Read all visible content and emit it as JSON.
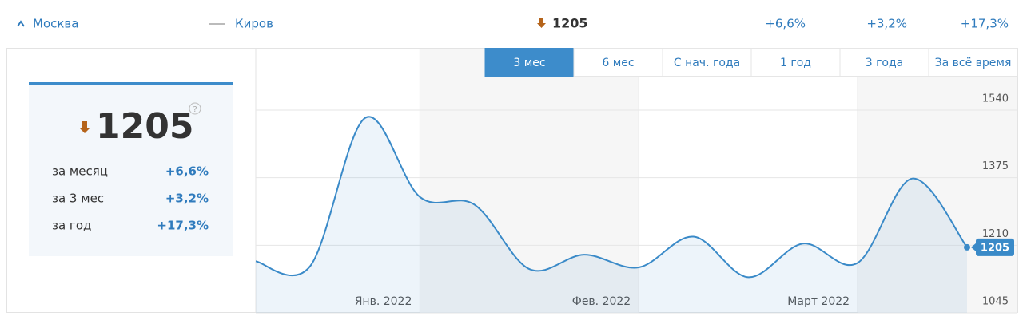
{
  "header": {
    "city": "Москва",
    "compare": "Киров",
    "value": 1205,
    "changes": [
      "+6,6%",
      "+3,2%",
      "+17,3%"
    ]
  },
  "summary": {
    "value": 1205,
    "help": "?",
    "rows": [
      {
        "label": "за месяц",
        "change": "+6,6%"
      },
      {
        "label": "за 3 мес",
        "change": "+3,2%"
      },
      {
        "label": "за год",
        "change": "+17,3%"
      }
    ]
  },
  "tabs": {
    "items": [
      "3 мес",
      "6 мес",
      "С нач. года",
      "1 год",
      "3 года",
      "За всё время"
    ],
    "active": 0
  },
  "chart_data": {
    "type": "line",
    "color": "#3a8ac8",
    "x": [
      0,
      1,
      2,
      3,
      4,
      5,
      6,
      7,
      8,
      9,
      10,
      11,
      12,
      13
    ],
    "values": [
      1171,
      1160,
      1521,
      1328,
      1309,
      1152,
      1187,
      1156,
      1231,
      1132,
      1214,
      1167,
      1373,
      1205
    ],
    "xlim": [
      0,
      13
    ],
    "xticks": [
      {
        "value": 3,
        "label": "Янв. 2022"
      },
      {
        "value": 7,
        "label": "Фев. 2022"
      },
      {
        "value": 11,
        "label": "Март 2022"
      }
    ],
    "ylim": [
      1045,
      1540
    ],
    "yticks": [
      1045,
      1210,
      1375,
      1540
    ],
    "grid": true
  }
}
